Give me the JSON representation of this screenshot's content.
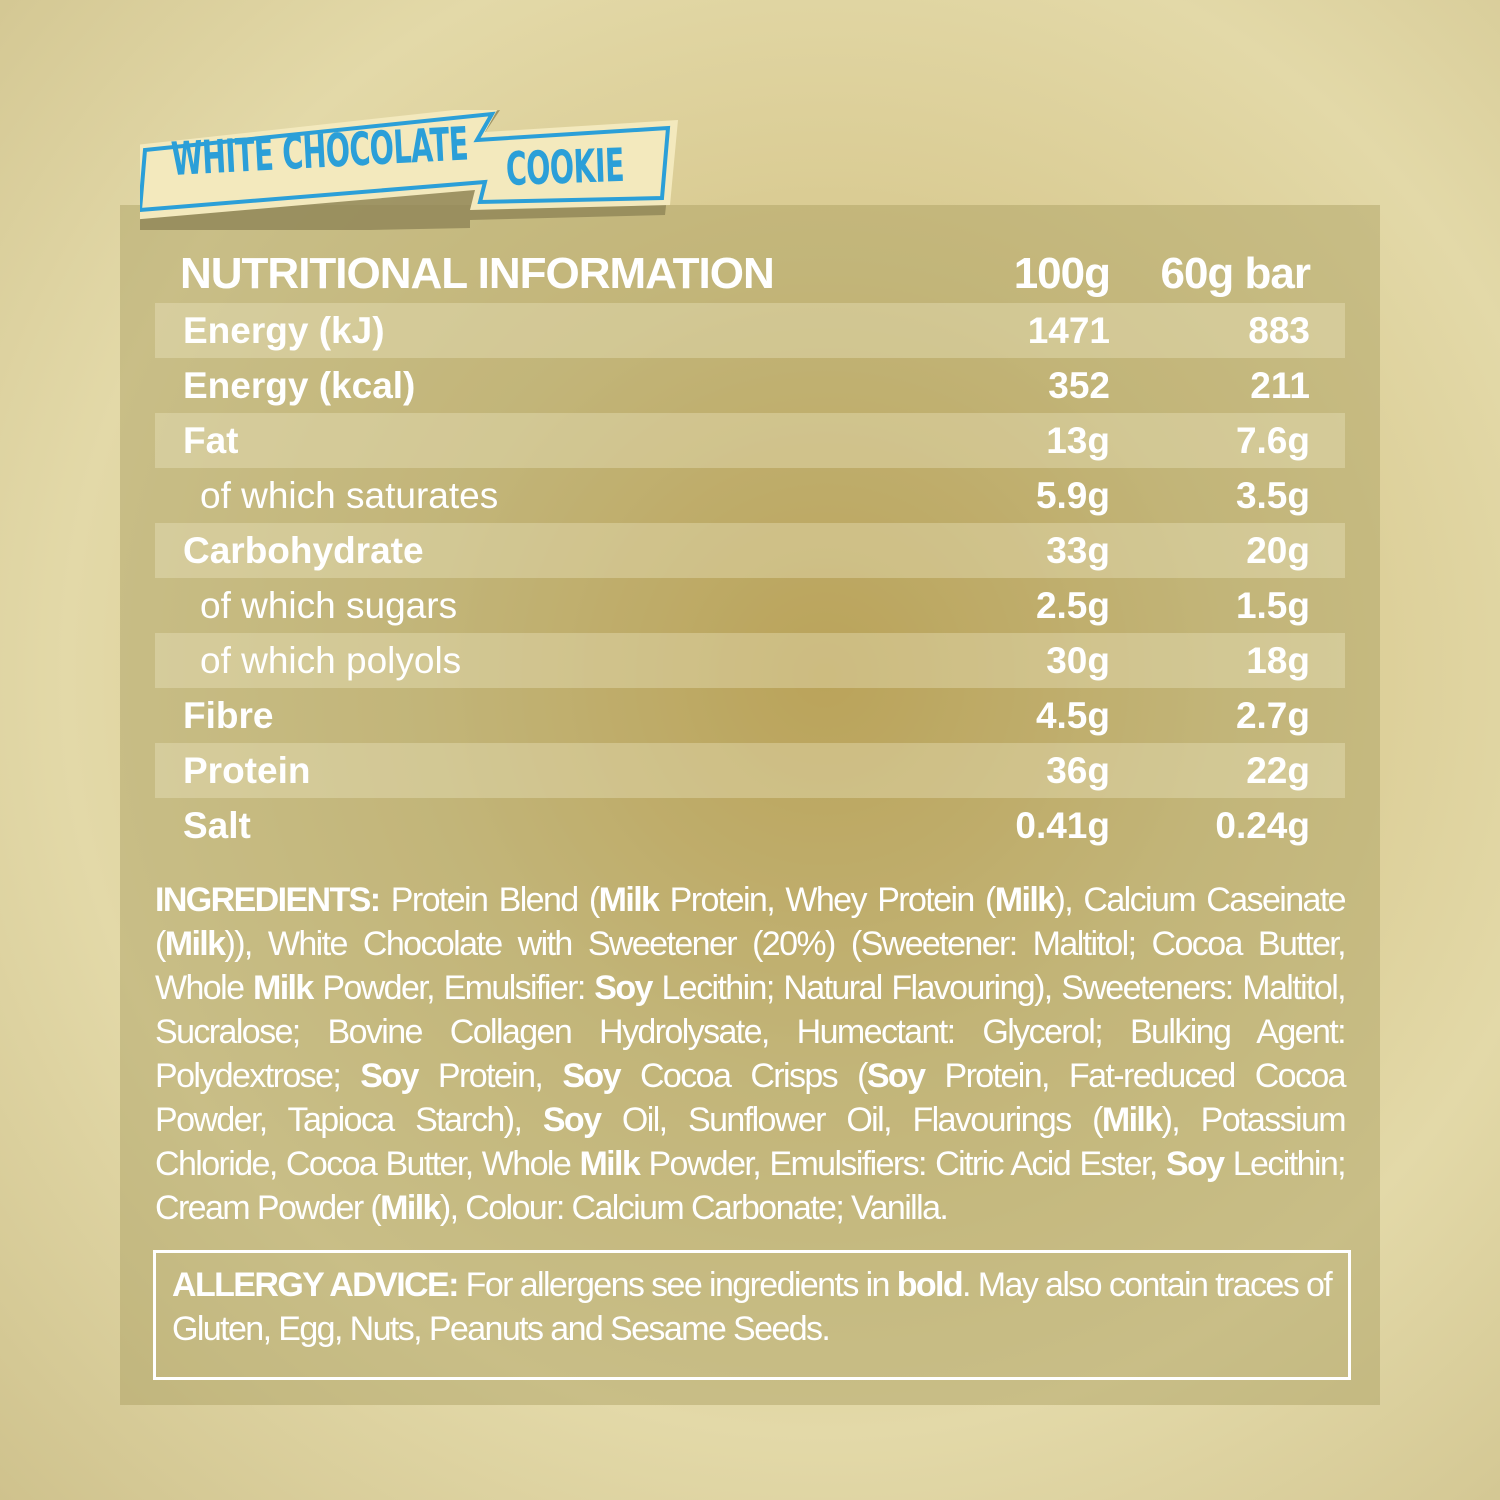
{
  "banner": {
    "line1": "WHITE CHOCOLATE",
    "line2": "COOKIE",
    "text_color": "#2b9fd8",
    "fill": "#f3e9bd"
  },
  "table": {
    "header": {
      "title": "NUTRITIONAL INFORMATION",
      "col1": "100g",
      "col2": "60g bar"
    },
    "rows": [
      {
        "label": "Energy (kJ)",
        "v100": "1471",
        "vbar": "883"
      },
      {
        "label": "Energy (kcal)",
        "v100": "352",
        "vbar": "211"
      },
      {
        "label": "Fat",
        "v100": "13g",
        "vbar": "7.6g"
      },
      {
        "label": "of which saturates",
        "v100": "5.9g",
        "vbar": "3.5g"
      },
      {
        "label": "Carbohydrate",
        "v100": "33g",
        "vbar": "20g"
      },
      {
        "label": "of which sugars",
        "v100": "2.5g",
        "vbar": "1.5g"
      },
      {
        "label": "of which polyols",
        "v100": "30g",
        "vbar": "18g"
      },
      {
        "label": "Fibre",
        "v100": "4.5g",
        "vbar": "2.7g"
      },
      {
        "label": "Protein",
        "v100": "36g",
        "vbar": "22g"
      },
      {
        "label": "Salt",
        "v100": "0.41g",
        "vbar": "0.24g"
      }
    ]
  },
  "ingredients": [
    {
      "t": "INGREDIENTS:",
      "b": true
    },
    {
      "t": " Protein Blend (",
      "b": false
    },
    {
      "t": "Milk",
      "b": true
    },
    {
      "t": " Protein, Whey Protein (",
      "b": false
    },
    {
      "t": "Milk",
      "b": true
    },
    {
      "t": "), Calcium Caseinate (",
      "b": false
    },
    {
      "t": "Milk",
      "b": true
    },
    {
      "t": ")), White Chocolate with Sweetener (20%) (Sweetener: Maltitol; Cocoa Butter, Whole ",
      "b": false
    },
    {
      "t": "Milk",
      "b": true
    },
    {
      "t": " Powder, Emulsifier: ",
      "b": false
    },
    {
      "t": "Soy",
      "b": true
    },
    {
      "t": " Lecithin; Natural Flavouring), Sweeteners: Maltitol, Sucralose; Bovine Collagen Hydrolysate, Humectant: Glycerol; Bulking Agent: Polydextrose; ",
      "b": false
    },
    {
      "t": "Soy",
      "b": true
    },
    {
      "t": " Protein, ",
      "b": false
    },
    {
      "t": "Soy",
      "b": true
    },
    {
      "t": " Cocoa Crisps (",
      "b": false
    },
    {
      "t": "Soy",
      "b": true
    },
    {
      "t": " Protein, Fat-reduced Cocoa Powder, Tapioca Starch), ",
      "b": false
    },
    {
      "t": "Soy",
      "b": true
    },
    {
      "t": " Oil, Sunflower Oil, Flavourings (",
      "b": false
    },
    {
      "t": "Milk",
      "b": true
    },
    {
      "t": "), Potassium Chloride, Cocoa Butter, Whole ",
      "b": false
    },
    {
      "t": "Milk",
      "b": true
    },
    {
      "t": " Powder, Emulsifiers: Citric Acid Ester, ",
      "b": false
    },
    {
      "t": "Soy",
      "b": true
    },
    {
      "t": " Lecithin; Cream Powder (",
      "b": false
    },
    {
      "t": "Milk",
      "b": true
    },
    {
      "t": "), Colour: Calcium Carbonate; Vanilla.",
      "b": false
    }
  ],
  "allergy": [
    {
      "t": "ALLERGY ADVICE:",
      "b": true
    },
    {
      "t": " For allergens see ingredients in ",
      "b": false
    },
    {
      "t": "bold",
      "b": true
    },
    {
      "t": ". May also contain traces of Gluten, Egg, Nuts, Peanuts and Sesame Seeds.",
      "b": false
    }
  ]
}
